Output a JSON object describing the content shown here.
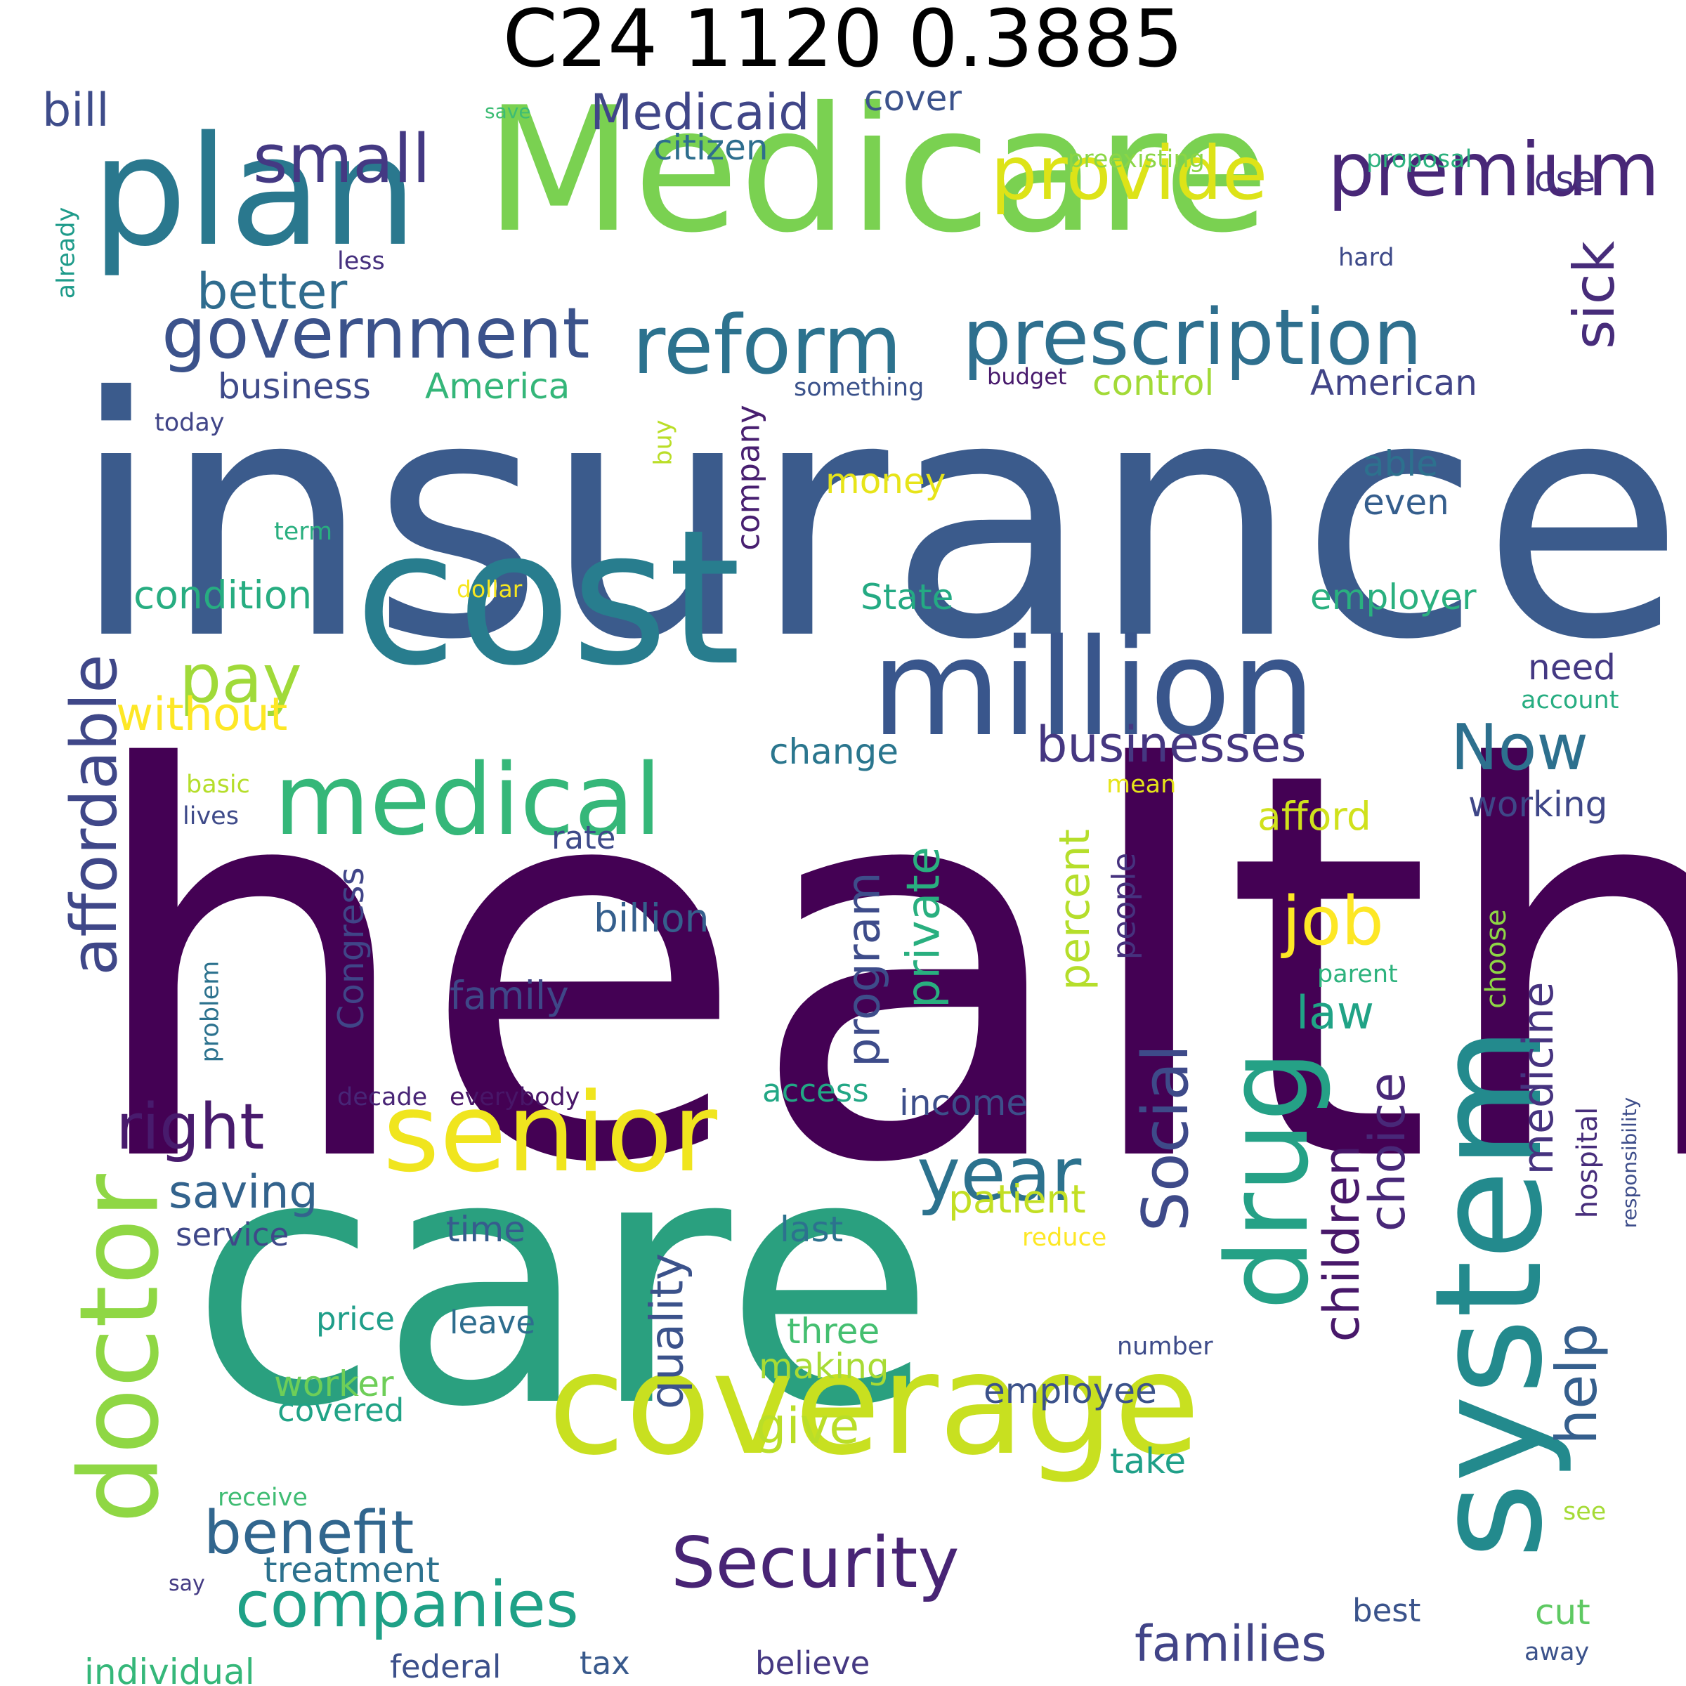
{
  "title": "C24 1120 0.3885",
  "words": [
    {
      "text": "health",
      "color": "#440154"
    },
    {
      "text": "insurance",
      "color": "#3b5b8c"
    },
    {
      "text": "care",
      "color": "#2aa07f"
    },
    {
      "text": "Medicare",
      "color": "#7ad151"
    },
    {
      "text": "cost",
      "color": "#287d8e"
    },
    {
      "text": "coverage",
      "color": "#c8e020"
    },
    {
      "text": "system",
      "color": "#238a8d"
    },
    {
      "text": "plan",
      "color": "#2a788e"
    },
    {
      "text": "million",
      "color": "#39568c"
    },
    {
      "text": "senior",
      "color": "#f0e51e"
    },
    {
      "text": "drug",
      "color": "#25a186"
    },
    {
      "text": "doctor",
      "color": "#8fd744"
    },
    {
      "text": "medical",
      "color": "#35b779"
    },
    {
      "text": "reform",
      "color": "#2c728e"
    },
    {
      "text": "prescription",
      "color": "#2e6f8e"
    },
    {
      "text": "government",
      "color": "#3b528b"
    },
    {
      "text": "provide",
      "color": "#dde318"
    },
    {
      "text": "premium",
      "color": "#482777"
    },
    {
      "text": "small",
      "color": "#443983"
    },
    {
      "text": "Security",
      "color": "#482475"
    },
    {
      "text": "companies",
      "color": "#1fa187"
    },
    {
      "text": "affordable",
      "color": "#3f4788"
    },
    {
      "text": "pay",
      "color": "#a0da39"
    },
    {
      "text": "year",
      "color": "#2c728e"
    },
    {
      "text": "Social",
      "color": "#3e4a89"
    },
    {
      "text": "benefit",
      "color": "#31668e"
    },
    {
      "text": "right",
      "color": "#481b6d"
    },
    {
      "text": "job",
      "color": "#fde725"
    },
    {
      "text": "businesses",
      "color": "#453781"
    },
    {
      "text": "families",
      "color": "#414487"
    },
    {
      "text": "Now",
      "color": "#2d708e"
    },
    {
      "text": "help",
      "color": "#355f8d"
    },
    {
      "text": "sick",
      "color": "#472c7a"
    },
    {
      "text": "Medicaid",
      "color": "#404688"
    },
    {
      "text": "better",
      "color": "#2f6c8e"
    },
    {
      "text": "give",
      "color": "#bade28"
    },
    {
      "text": "children",
      "color": "#48186a"
    },
    {
      "text": "choice",
      "color": "#482878"
    },
    {
      "text": "medicine",
      "color": "#46337f"
    },
    {
      "text": "quality",
      "color": "#3b528b"
    },
    {
      "text": "program",
      "color": "#3e4c8a"
    },
    {
      "text": "private",
      "color": "#29af7f"
    },
    {
      "text": "percent",
      "color": "#b5de2b"
    },
    {
      "text": "without",
      "color": "#fde725"
    },
    {
      "text": "bill",
      "color": "#3e4c8a"
    },
    {
      "text": "saving",
      "color": "#33638d"
    },
    {
      "text": "law",
      "color": "#20a386"
    },
    {
      "text": "Congress",
      "color": "#404588"
    },
    {
      "text": "condition",
      "color": "#27ad81"
    },
    {
      "text": "business",
      "color": "#3e4a89"
    },
    {
      "text": "America",
      "color": "#34b679"
    },
    {
      "text": "American",
      "color": "#414487"
    },
    {
      "text": "control",
      "color": "#a2da37"
    },
    {
      "text": "cover",
      "color": "#3b528b"
    },
    {
      "text": "citizen",
      "color": "#2e6e8e"
    },
    {
      "text": "lose",
      "color": "#46307e"
    },
    {
      "text": "company",
      "color": "#481f70"
    },
    {
      "text": "money",
      "color": "#e7e419"
    },
    {
      "text": "able",
      "color": "#2d718e"
    },
    {
      "text": "even",
      "color": "#355e8d"
    },
    {
      "text": "State",
      "color": "#24aa83"
    },
    {
      "text": "employer",
      "color": "#2ab07f"
    },
    {
      "text": "need",
      "color": "#443983"
    },
    {
      "text": "change",
      "color": "#2a768e"
    },
    {
      "text": "afford",
      "color": "#d0e11c"
    },
    {
      "text": "working",
      "color": "#3f4788"
    },
    {
      "text": "rate",
      "color": "#3e4a89"
    },
    {
      "text": "billion",
      "color": "#355f8d"
    },
    {
      "text": "family",
      "color": "#3f4788"
    },
    {
      "text": "people",
      "color": "#46327e"
    },
    {
      "text": "patient",
      "color": "#c2df23"
    },
    {
      "text": "income",
      "color": "#3d4e8a"
    },
    {
      "text": "access",
      "color": "#22a785"
    },
    {
      "text": "time",
      "color": "#365c8d"
    },
    {
      "text": "last",
      "color": "#2c728e"
    },
    {
      "text": "service",
      "color": "#3f4889"
    },
    {
      "text": "price",
      "color": "#1f9e89"
    },
    {
      "text": "leave",
      "color": "#2e6d8e"
    },
    {
      "text": "three",
      "color": "#44bf70"
    },
    {
      "text": "making",
      "color": "#a8db34"
    },
    {
      "text": "worker",
      "color": "#6ece58"
    },
    {
      "text": "covered",
      "color": "#20a386"
    },
    {
      "text": "employee",
      "color": "#3b528b"
    },
    {
      "text": "take",
      "color": "#1fa088"
    },
    {
      "text": "treatment",
      "color": "#2c718e"
    },
    {
      "text": "individual",
      "color": "#35b779"
    },
    {
      "text": "federal",
      "color": "#3c508b"
    },
    {
      "text": "tax",
      "color": "#38598c"
    },
    {
      "text": "believe",
      "color": "#453882"
    },
    {
      "text": "best",
      "color": "#3a538b"
    },
    {
      "text": "cut",
      "color": "#5ec962"
    },
    {
      "text": "hospital",
      "color": "#472d7b"
    },
    {
      "text": "choose",
      "color": "#8ed645"
    },
    {
      "text": "responsibility",
      "color": "#3d4d8a"
    },
    {
      "text": "problem",
      "color": "#2c728e"
    },
    {
      "text": "decade",
      "color": "#482576"
    },
    {
      "text": "everybody",
      "color": "#481668"
    },
    {
      "text": "already",
      "color": "#1e9b8a"
    },
    {
      "text": "less",
      "color": "#46307e"
    },
    {
      "text": "save",
      "color": "#3dbc74"
    },
    {
      "text": "preexisting",
      "color": "#8bd646"
    },
    {
      "text": "proposal",
      "color": "#2cb17e"
    },
    {
      "text": "hard",
      "color": "#3e4a89"
    },
    {
      "text": "something",
      "color": "#3b528b"
    },
    {
      "text": "budget",
      "color": "#481a6c"
    },
    {
      "text": "today",
      "color": "#404588"
    },
    {
      "text": "buy",
      "color": "#bade28"
    },
    {
      "text": "term",
      "color": "#29af7f"
    },
    {
      "text": "dollar",
      "color": "#f6e620"
    },
    {
      "text": "account",
      "color": "#27ad81"
    },
    {
      "text": "mean",
      "color": "#e5e419"
    },
    {
      "text": "basic",
      "color": "#b5de2b"
    },
    {
      "text": "lives",
      "color": "#3e4a89"
    },
    {
      "text": "parent",
      "color": "#2db27d"
    },
    {
      "text": "reduce",
      "color": "#fde725"
    },
    {
      "text": "number",
      "color": "#3e4c8a"
    },
    {
      "text": "receive",
      "color": "#3fbc73"
    },
    {
      "text": "say",
      "color": "#443b84"
    },
    {
      "text": "see",
      "color": "#a5db36"
    },
    {
      "text": "away",
      "color": "#3b528b"
    }
  ]
}
